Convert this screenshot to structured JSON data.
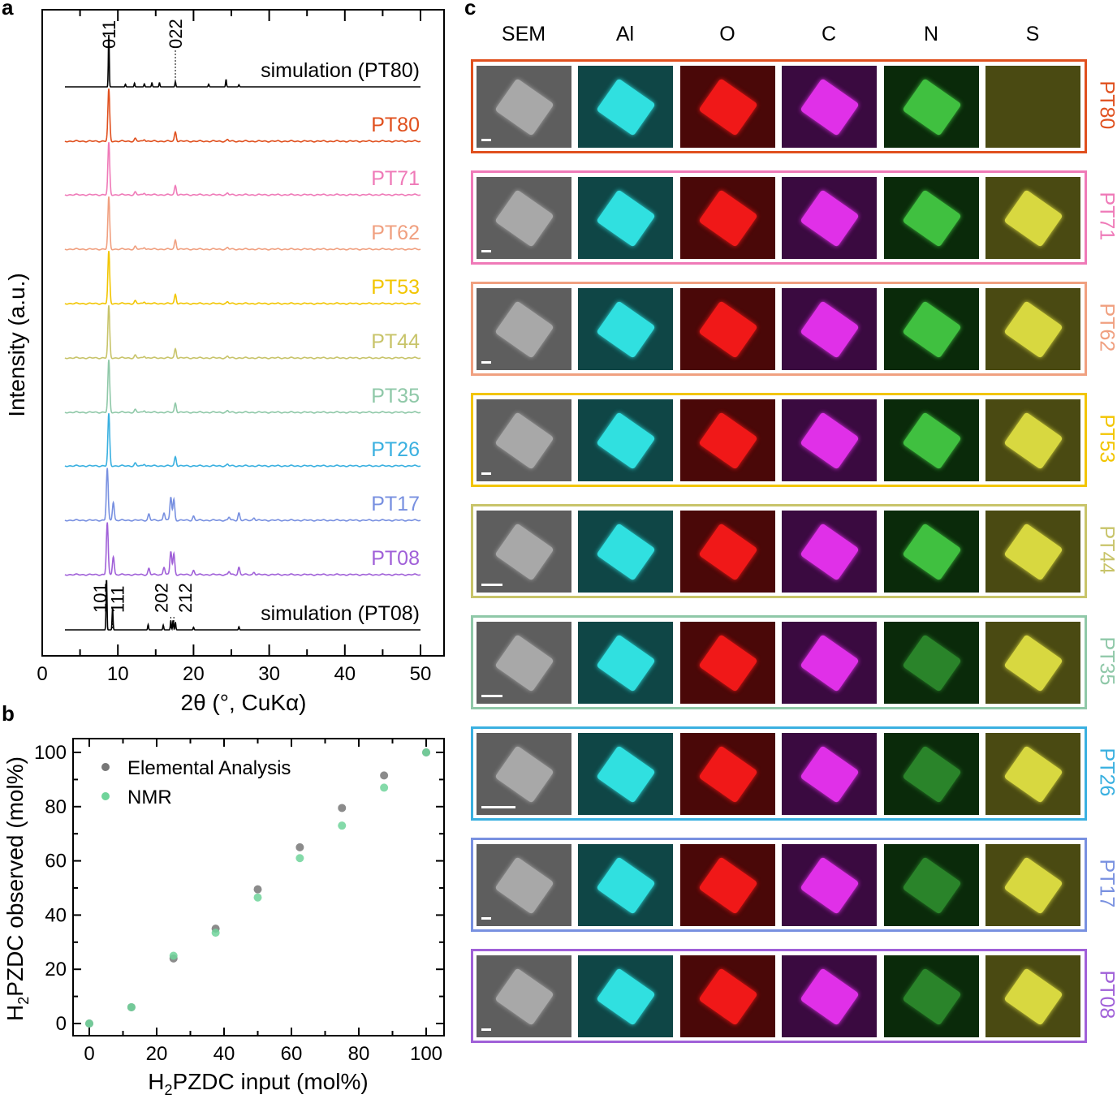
{
  "panels": {
    "a": "a",
    "b": "b",
    "c": "c"
  },
  "chart_data": [
    {
      "type": "line",
      "panel": "a",
      "xlabel": "2θ (°, CuKα)",
      "ylabel": "Intensity (a.u.)",
      "xlim": [
        0,
        53
      ],
      "xticks": [
        0,
        10,
        20,
        30,
        40,
        50
      ],
      "series": [
        {
          "name": "simulation (PT80)",
          "color": "#000000",
          "kind": "sim80"
        },
        {
          "name": "PT80",
          "color": "#e0501e",
          "kind": "a"
        },
        {
          "name": "PT71",
          "color": "#ef7ab8",
          "kind": "a"
        },
        {
          "name": "PT62",
          "color": "#f0a080",
          "kind": "a"
        },
        {
          "name": "PT53",
          "color": "#f2c500",
          "kind": "a"
        },
        {
          "name": "PT44",
          "color": "#c8c46a",
          "kind": "a"
        },
        {
          "name": "PT35",
          "color": "#8fc8a8",
          "kind": "a"
        },
        {
          "name": "PT26",
          "color": "#3ab0e0",
          "kind": "a"
        },
        {
          "name": "PT17",
          "color": "#7890e0",
          "kind": "b"
        },
        {
          "name": "PT08",
          "color": "#a060d8",
          "kind": "b"
        },
        {
          "name": "simulation (PT08)",
          "color": "#000000",
          "kind": "sim08"
        }
      ],
      "peaks": {
        "a": [
          [
            8.8,
            1
          ],
          [
            12.3,
            0.05
          ],
          [
            13.5,
            0.04
          ],
          [
            17.6,
            0.18
          ],
          [
            24.5,
            0.03
          ]
        ],
        "b": [
          [
            8.6,
            1
          ],
          [
            9.4,
            0.35
          ],
          [
            14.1,
            0.12
          ],
          [
            16.1,
            0.15
          ],
          [
            17.0,
            0.45
          ],
          [
            17.4,
            0.4
          ],
          [
            20,
            0.08
          ],
          [
            24.7,
            0.06
          ],
          [
            26,
            0.14
          ],
          [
            28,
            0.05
          ]
        ],
        "sim80": [
          [
            8.8,
            1
          ],
          [
            11,
            0.05
          ],
          [
            12.2,
            0.07
          ],
          [
            13.5,
            0.06
          ],
          [
            14.5,
            0.08
          ],
          [
            15.5,
            0.08
          ],
          [
            17.6,
            0.1
          ],
          [
            22,
            0.05
          ],
          [
            24.3,
            0.14
          ],
          [
            26,
            0.04
          ]
        ],
        "sim08": [
          [
            8.5,
            1
          ],
          [
            9.3,
            0.42
          ],
          [
            14,
            0.1
          ],
          [
            16,
            0.09
          ],
          [
            17,
            0.18
          ],
          [
            17.3,
            0.18
          ],
          [
            17.6,
            0.15
          ],
          [
            20,
            0.05
          ],
          [
            26,
            0.06
          ]
        ]
      },
      "annotations": [
        {
          "text": "011",
          "x": 8.8,
          "trace": "simulation (PT80)"
        },
        {
          "text": "022",
          "x": 17.6,
          "trace": "simulation (PT80)"
        },
        {
          "text": "101",
          "x": 8.5,
          "trace": "simulation (PT08)"
        },
        {
          "text": "111",
          "x": 9.3,
          "trace": "simulation (PT08)"
        },
        {
          "text": "202",
          "x": 17.0,
          "trace": "simulation (PT08)"
        },
        {
          "text": "212",
          "x": 17.4,
          "trace": "simulation (PT08)"
        }
      ]
    },
    {
      "type": "scatter",
      "panel": "b",
      "xlabel_main": "H",
      "xlabel_sub": "2",
      "xlabel_rest": "PZDC input (mol%)",
      "ylabel_main": "H",
      "ylabel_sub": "2",
      "ylabel_rest": "PZDC observed (mol%)",
      "xlim": [
        -5,
        105
      ],
      "ylim": [
        -5,
        105
      ],
      "xticks": [
        0,
        20,
        40,
        60,
        80,
        100
      ],
      "yticks": [
        0,
        20,
        40,
        60,
        80,
        100
      ],
      "legend": "top-left",
      "series": [
        {
          "name": "Elemental Analysis",
          "color": "#777777",
          "x": [
            0,
            12.5,
            25,
            37.5,
            50,
            62.5,
            75,
            87.5,
            100
          ],
          "y": [
            0,
            6,
            24,
            35,
            49.5,
            65,
            79.5,
            91.5,
            100
          ]
        },
        {
          "name": "NMR",
          "color": "#6fd49a",
          "x": [
            0,
            12.5,
            25,
            37.5,
            50,
            62.5,
            75,
            87.5,
            100
          ],
          "y": [
            0,
            6,
            25,
            33.5,
            46.5,
            61,
            73,
            87,
            100
          ]
        }
      ]
    }
  ],
  "mapping": {
    "columns": [
      "SEM",
      "Al",
      "O",
      "C",
      "N",
      "S"
    ],
    "tile_colors": {
      "SEM": [
        "#5e5e5e",
        "#a8a8a8"
      ],
      "Al": [
        "#0f4646",
        "#30e0e0"
      ],
      "O": [
        "#4a0808",
        "#f01818"
      ],
      "C": [
        "#3a0a40",
        "#e030e8"
      ],
      "N": [
        "#0a2a0a",
        "#40c040"
      ],
      "S": [
        "#4a4a12",
        "#d8d840"
      ]
    },
    "rows": [
      {
        "label": "PT80",
        "color": "#e0501e"
      },
      {
        "label": "PT71",
        "color": "#ef7ab8"
      },
      {
        "label": "PT62",
        "color": "#f0a080"
      },
      {
        "label": "PT53",
        "color": "#f2c500"
      },
      {
        "label": "PT44",
        "color": "#c8c46a"
      },
      {
        "label": "PT35",
        "color": "#8fc8a8"
      },
      {
        "label": "PT26",
        "color": "#3ab0e0"
      },
      {
        "label": "PT17",
        "color": "#7890e0"
      },
      {
        "label": "PT08",
        "color": "#a060d8"
      }
    ]
  }
}
